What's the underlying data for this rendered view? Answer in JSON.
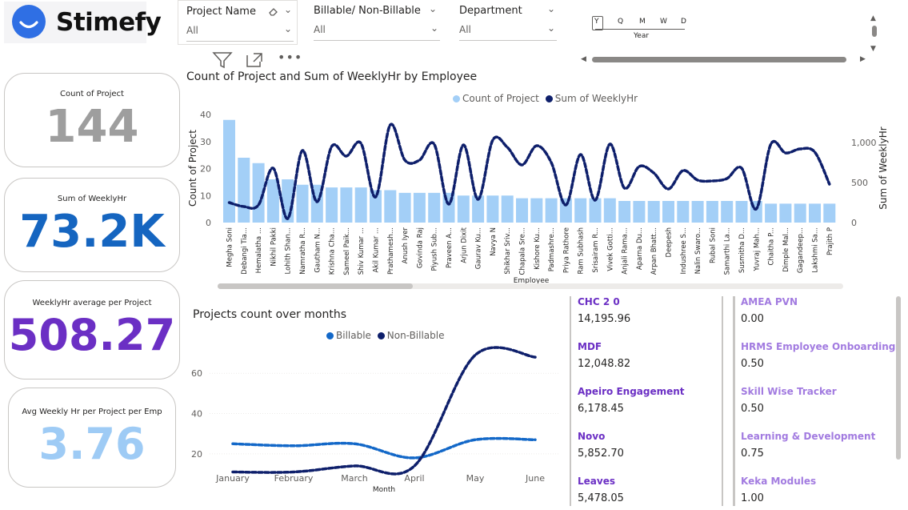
{
  "brand": {
    "name": "Stimefy",
    "color": "#2f6fe4"
  },
  "slicers": [
    {
      "title": "Project Name",
      "value": "All"
    },
    {
      "title": "Billable/ Non-Billable",
      "value": "All"
    },
    {
      "title": "Department",
      "value": "All"
    }
  ],
  "date_slicer": {
    "levels": [
      "Y",
      "Q",
      "M",
      "W",
      "D"
    ],
    "label": "Year"
  },
  "cards": [
    {
      "label": "Count of Project",
      "value": "144",
      "color": "#9e9e9e"
    },
    {
      "label": "Sum of WeeklyHr",
      "value": "73.2K",
      "color": "#1565c0"
    },
    {
      "label": "WeeklyHr average per Project",
      "value": "508.27",
      "color": "#6b2fc4"
    },
    {
      "label": "Avg Weekly Hr per Project per Emp",
      "value": "3.76",
      "color": "#9ecbf5"
    }
  ],
  "combo": {
    "title": "Count of Project and Sum of WeeklyHr by Employee",
    "legend": [
      "Count of Project",
      "Sum of WeeklyHr"
    ],
    "ylabel_left": "Count of Project",
    "ylabel_right": "Sum of WeeklyHr",
    "xlabel": "Employee",
    "left_ticks": [
      "0",
      "10",
      "20",
      "30",
      "40"
    ],
    "right_ticks": [
      "0",
      "500",
      "1,000"
    ]
  },
  "line": {
    "title": "Projects count over months",
    "legend": [
      "Billable",
      "Non-Billable"
    ],
    "xlabel": "Month",
    "y_ticks": [
      "20",
      "40",
      "60"
    ]
  },
  "chart_data": [
    {
      "type": "bar",
      "title": "Count of Project and Sum of WeeklyHr by Employee",
      "xlabel": "Employee",
      "ylabel": "Count of Project",
      "y2label": "Sum of WeeklyHr",
      "ylim": [
        0,
        40
      ],
      "y2lim": [
        0,
        1350
      ],
      "categories": [
        "Megha Soni",
        "Debangi Tia...",
        "Hemalatha ...",
        "Nikhil Pakki",
        "Lohith Shan...",
        "Namratha R...",
        "Gautham N...",
        "Krishna Cha...",
        "Sameel Paik...",
        "Shiv Kumar ...",
        "Akil Kumar ...",
        "Prathamesh...",
        "Anush Iyer",
        "Govinda Raj",
        "Piyush Sub...",
        "Praveen A...",
        "Arjun Dixit",
        "Gaurav Ku...",
        "Navya N",
        "Shikhar Sriv...",
        "Chapala Sre...",
        "Kishore Ku...",
        "Padmashre...",
        "Priya Rathore",
        "Ram Subhash",
        "Srisairam R...",
        "Vivek Gotti...",
        "Anjali Rama...",
        "Aparna Du...",
        "Arpan Bhatt...",
        "Deepesh",
        "Indushree S...",
        "Nalin Swaro...",
        "Rubal Soni",
        "Samarthi La...",
        "Susmitha D...",
        "Yuvraj Mah...",
        "Chaitha P...",
        "Dimple Mal...",
        "Gagandeep...",
        "Lakshmi Sa...",
        "Prajith P"
      ],
      "series": [
        {
          "name": "Count of Project",
          "values": [
            38,
            24,
            22,
            16,
            16,
            14,
            14,
            13,
            13,
            13,
            12,
            12,
            11,
            11,
            11,
            11,
            10,
            10,
            10,
            10,
            9,
            9,
            9,
            9,
            9,
            9,
            9,
            8,
            8,
            8,
            8,
            8,
            8,
            8,
            8,
            8,
            8,
            7,
            7,
            7,
            7,
            7
          ],
          "color": "#a3cff7"
        },
        {
          "name": "Sum of WeeklyHr",
          "values": [
            250,
            200,
            220,
            680,
            50,
            900,
            260,
            950,
            830,
            990,
            320,
            1220,
            780,
            780,
            980,
            230,
            970,
            290,
            1030,
            940,
            720,
            960,
            750,
            220,
            850,
            280,
            980,
            430,
            700,
            620,
            420,
            650,
            530,
            520,
            550,
            680,
            170,
            980,
            870,
            920,
            880,
            480
          ],
          "color": "#0e1f6b"
        }
      ]
    },
    {
      "type": "line",
      "title": "Projects count over months",
      "xlabel": "Month",
      "categories": [
        "January",
        "February",
        "March",
        "April",
        "May",
        "June"
      ],
      "ylim": [
        12,
        72
      ],
      "series": [
        {
          "name": "Billable",
          "values": [
            25,
            24,
            25,
            18,
            27,
            27
          ],
          "color": "#1368c8"
        },
        {
          "name": "Non-Billable",
          "values": [
            11,
            11,
            14,
            14,
            69,
            68
          ],
          "color": "#0e1f6b"
        }
      ]
    }
  ],
  "kpi_left": [
    {
      "name": "CHC 2 0",
      "value": "14,195.96"
    },
    {
      "name": "MDF",
      "value": "12,048.82"
    },
    {
      "name": "Apeiro Engagement",
      "value": "6,178.45"
    },
    {
      "name": "Novo",
      "value": "5,852.70"
    },
    {
      "name": "Leaves",
      "value": "5,478.05"
    }
  ],
  "kpi_right": [
    {
      "name": "AMEA PVN",
      "value": "0.00"
    },
    {
      "name": "HRMS Employee Onboarding",
      "value": "0.50"
    },
    {
      "name": "Skill Wise Tracker",
      "value": "0.50"
    },
    {
      "name": "Learning & Development",
      "value": "0.75"
    },
    {
      "name": "Keka Modules",
      "value": "1.00"
    }
  ],
  "colors": {
    "kpi_left_name": "#6b2fc4",
    "kpi_right_name": "#a27be0"
  }
}
